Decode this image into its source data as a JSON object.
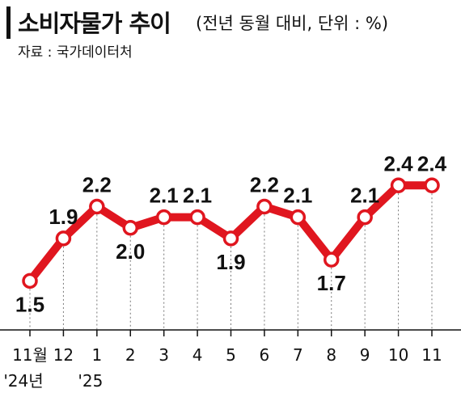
{
  "header": {
    "title": "소비자물가 추이",
    "unit": "(전년 동월 대비, 단위 : %)",
    "source": "자료 : 국가데이터처"
  },
  "chart_data": {
    "type": "line",
    "title": "소비자물가 추이",
    "subtitle": "(전년 동월 대비, 단위 : %)",
    "categories": [
      "11월",
      "12",
      "1",
      "2",
      "3",
      "4",
      "5",
      "6",
      "7",
      "8",
      "9",
      "10",
      "11"
    ],
    "year_labels": [
      {
        "index": 0,
        "label": "'24년"
      },
      {
        "index": 2,
        "label": "'25"
      }
    ],
    "series": [
      {
        "values": [
          1.5,
          1.9,
          2.2,
          2.0,
          2.1,
          2.1,
          1.9,
          2.2,
          2.1,
          1.7,
          2.1,
          2.4,
          2.4
        ]
      }
    ],
    "data_labels": [
      "1.5",
      "1.9",
      "2.2",
      "2.0",
      "2.1",
      "2.1",
      "1.9",
      "2.2",
      "2.1",
      "1.7",
      "2.1",
      "2.4",
      "2.4"
    ],
    "ylim": [
      1.0,
      2.6
    ],
    "grid": false,
    "line_color": "#e0161f",
    "marker_fill": "#ffffff"
  }
}
